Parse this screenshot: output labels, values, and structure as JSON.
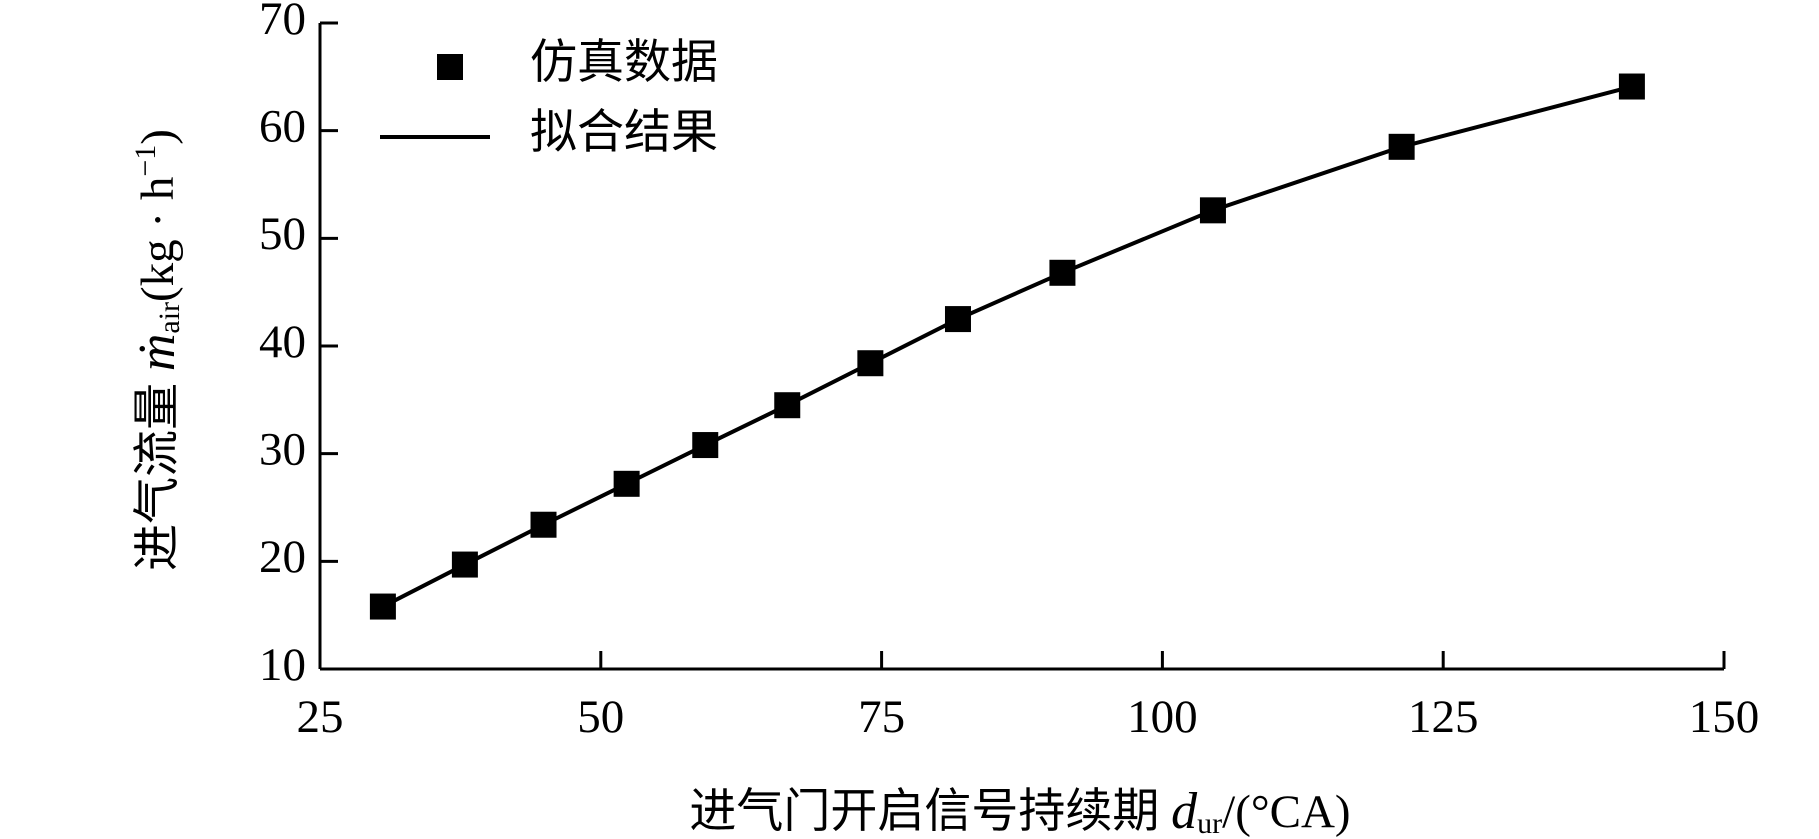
{
  "chart_data": {
    "type": "line",
    "x": [
      30.6,
      37.9,
      44.9,
      52.3,
      59.3,
      66.6,
      74.0,
      81.8,
      91.1,
      104.5,
      121.3,
      141.8
    ],
    "series": [
      {
        "name": "仿真数据",
        "color": "#000000",
        "marker": "square",
        "values": [
          15.8,
          19.7,
          23.4,
          27.2,
          30.8,
          34.5,
          38.4,
          42.5,
          46.8,
          52.6,
          58.5,
          64.1
        ]
      },
      {
        "name": "拟合结果",
        "color": "#000000",
        "marker": "none",
        "values": [
          15.8,
          19.7,
          23.4,
          27.2,
          30.8,
          34.5,
          38.4,
          42.5,
          46.8,
          52.6,
          58.5,
          64.1
        ]
      }
    ],
    "xlim": [
      25,
      150
    ],
    "xticks": [
      25,
      50,
      75,
      100,
      125,
      150
    ],
    "ylim": [
      10,
      70
    ],
    "yticks": [
      10,
      20,
      30,
      40,
      50,
      60,
      70
    ],
    "xlabel": [
      "进气门开启信号持续期 ",
      "d",
      "ur",
      "/(°CA)"
    ],
    "ylabel": [
      "进气流量 ",
      "ṁ",
      "air",
      "(kg · h",
      "−1",
      ")"
    ],
    "legend": "upper left",
    "grid": false
  }
}
